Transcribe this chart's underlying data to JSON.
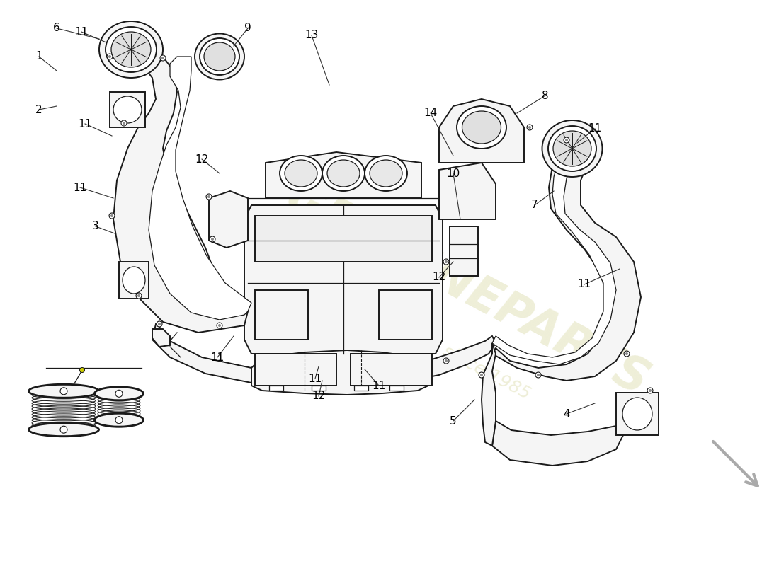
{
  "background_color": "#ffffff",
  "line_color": "#1a1a1a",
  "part_fill_color": "#f5f5f5",
  "watermark_color": "#e8e8c8",
  "label_color": "#000000",
  "figsize": [
    11.0,
    8.0
  ],
  "dpi": 100
}
